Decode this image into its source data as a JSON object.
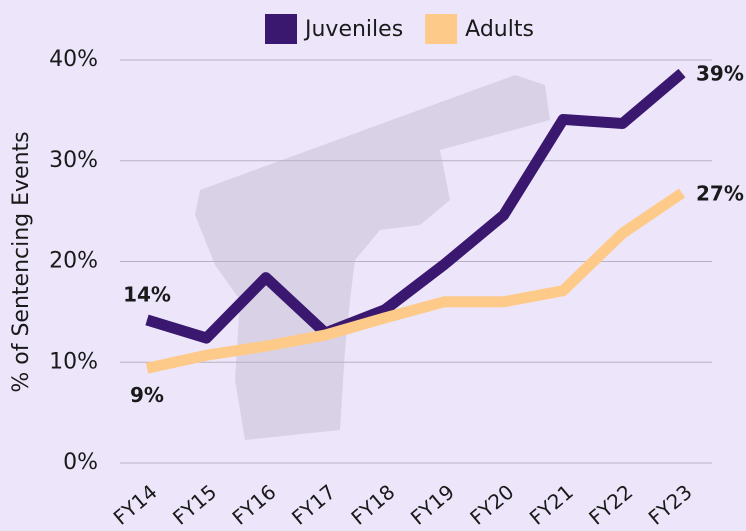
{
  "chart_data": {
    "type": "line",
    "y_label": "% of Sentencing Events",
    "categories": [
      "FY14",
      "FY15",
      "FY16",
      "FY17",
      "FY18",
      "FY19",
      "FY20",
      "FY21",
      "FY22",
      "FY23"
    ],
    "series": [
      {
        "name": "Juveniles",
        "color": "#3b1870",
        "values": [
          14.2,
          12.4,
          18.4,
          12.9,
          15.2,
          19.7,
          24.6,
          34.1,
          33.7,
          38.7
        ],
        "value_labels": [
          "14%",
          null,
          null,
          null,
          null,
          null,
          null,
          null,
          null,
          "39%"
        ]
      },
      {
        "name": "Adults",
        "color": "#fdca8a",
        "values": [
          9.4,
          10.7,
          11.6,
          12.7,
          14.4,
          16.0,
          16.0,
          17.1,
          22.8,
          26.8
        ],
        "value_labels": [
          "9%",
          null,
          null,
          null,
          null,
          null,
          null,
          null,
          null,
          "27%"
        ]
      }
    ],
    "ylim": [
      0,
      40
    ],
    "yticks": [
      {
        "value": 0,
        "label": "0%"
      },
      {
        "value": 10,
        "label": "10%"
      },
      {
        "value": 20,
        "label": "20%"
      },
      {
        "value": 30,
        "label": "30%"
      },
      {
        "value": 40,
        "label": "40%"
      }
    ],
    "grid": true
  }
}
